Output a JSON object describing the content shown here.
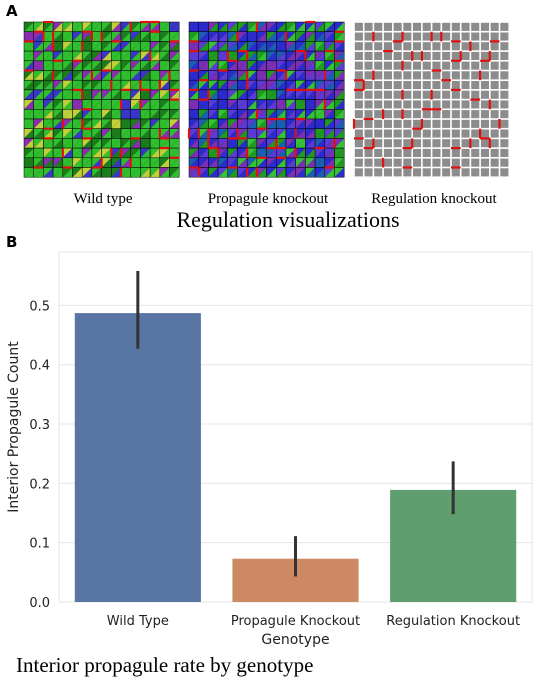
{
  "panel_a": {
    "letter": "A",
    "captions": [
      "Wild type",
      "Propagule knockout",
      "Regulation knockout"
    ],
    "title": "Regulation visualizations"
  },
  "panel_b": {
    "letter": "B",
    "caption": "Interior propagule rate by genotype"
  },
  "chart_data": {
    "type": "bar",
    "categories": [
      "Wild Type",
      "Propagule Knockout",
      "Regulation Knockout"
    ],
    "values": [
      0.487,
      0.073,
      0.189
    ],
    "error_low": [
      0.427,
      0.043,
      0.148
    ],
    "error_high": [
      0.558,
      0.111,
      0.237
    ],
    "colors": [
      "#5875a4",
      "#cc8963",
      "#5f9e6e"
    ],
    "error_color": "#333333",
    "xlabel": "Genotype",
    "ylabel": "Interior Propagule Count",
    "ylim": [
      0,
      0.59
    ],
    "yticks": [
      0.0,
      0.1,
      0.2,
      0.3,
      0.4,
      0.5
    ],
    "ytick_labels": [
      "0.0",
      "0.1",
      "0.2",
      "0.3",
      "0.4",
      "0.5"
    ],
    "grid": true,
    "background": "#ffffff",
    "grid_color": "#e4e4e4"
  }
}
